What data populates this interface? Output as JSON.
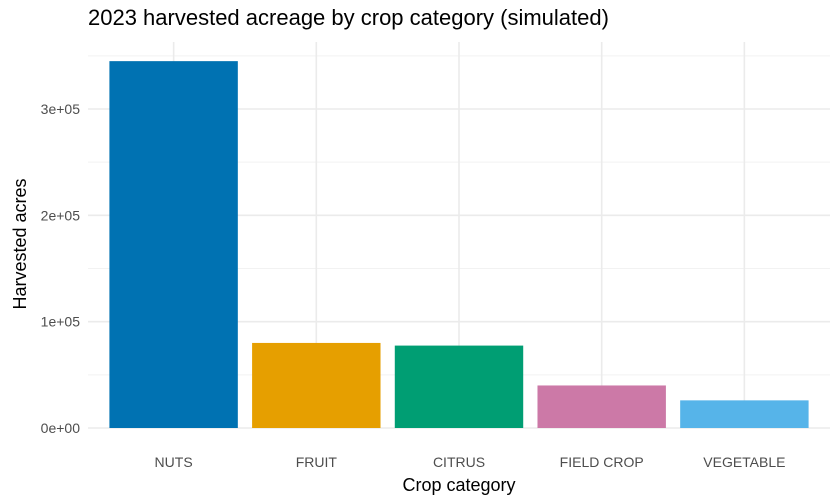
{
  "chart_data": {
    "type": "bar",
    "title": "2023 harvested acreage by crop category (simulated)",
    "xlabel": "Crop category",
    "ylabel": "Harvested acres",
    "categories": [
      "NUTS",
      "FRUIT",
      "CITRUS",
      "FIELD CROP",
      "VEGETABLE"
    ],
    "values": [
      345000,
      80000,
      77500,
      40000,
      26000
    ],
    "colors": [
      "#0072b2",
      "#e69f00",
      "#009e73",
      "#cc79a7",
      "#56b4e9"
    ],
    "ylim": [
      0,
      363000
    ],
    "yticks": [
      0,
      100000,
      200000,
      300000
    ],
    "ytick_labels": [
      "0e+00",
      "1e+05",
      "2e+05",
      "3e+05"
    ],
    "grid": true,
    "legend": "none"
  }
}
